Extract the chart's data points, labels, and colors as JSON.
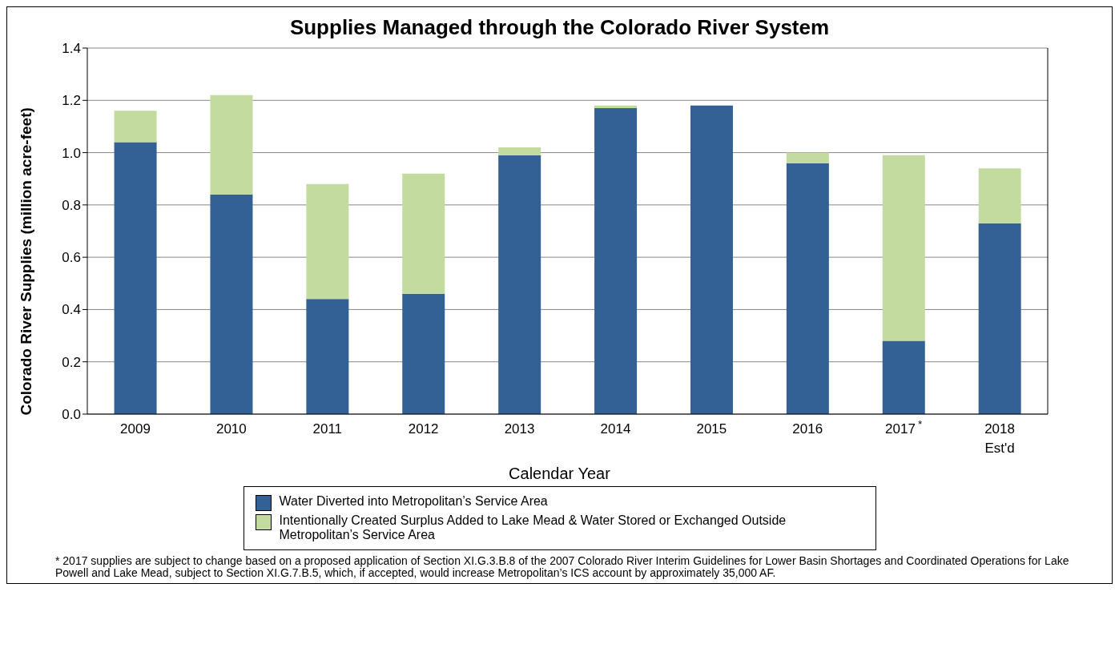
{
  "chart_data": {
    "type": "bar",
    "title": "Supplies Managed through the Colorado River System",
    "xlabel": "Calendar Year",
    "ylabel": "Colorado River Supplies  (million acre-feet)",
    "categories": [
      "2009",
      "2010",
      "2011",
      "2012",
      "2013",
      "2014",
      "2015",
      "2016",
      "2017$^{*}$",
      "2018\nEst'd"
    ],
    "stacked": true,
    "series": [
      {
        "name": "Water Diverted into Metropolitan’s Service Area",
        "color": "#336195",
        "values": [
          1.04,
          0.84,
          0.44,
          0.46,
          0.99,
          1.17,
          1.18,
          0.96,
          0.28,
          0.73
        ]
      },
      {
        "name": "Intentionally Created Surplus Added to Lake Mead & Water Stored or Exchanged Outside Metropolitan’s Service Area",
        "color": "#c4dba0",
        "values": [
          0.12,
          0.38,
          0.44,
          0.46,
          0.03,
          0.01,
          0,
          0.04,
          0.71,
          0.21
        ]
      }
    ],
    "ylim": [
      0,
      1.4
    ],
    "yticks": [
      {
        "value": 0,
        "label": "0.0"
      },
      {
        "value": 0.2,
        "label": "0.2"
      },
      {
        "value": 0.4,
        "label": "0.4"
      },
      {
        "value": 0.6,
        "label": "0.6"
      },
      {
        "value": 0.8,
        "label": "0.8"
      },
      {
        "value": 1,
        "label": "1.0"
      },
      {
        "value": 1.2,
        "label": "1.2"
      },
      {
        "value": 1.4,
        "label": "1.4"
      }
    ],
    "grid": "y",
    "legend": "bottom",
    "annotations": [
      "* 2017 supplies are subject to change based on a proposed application of Section XI.G.3.B.8 of the 2007 Colorado River Interim Guidelines for Lower Basin Shortages and Coordinated Operations for Lake Powell and Lake Mead, subject to Section XI.G.7.B.5, which, if accepted, would increase Metropolitan’s ICS account by approximately 35,000 AF."
    ]
  }
}
